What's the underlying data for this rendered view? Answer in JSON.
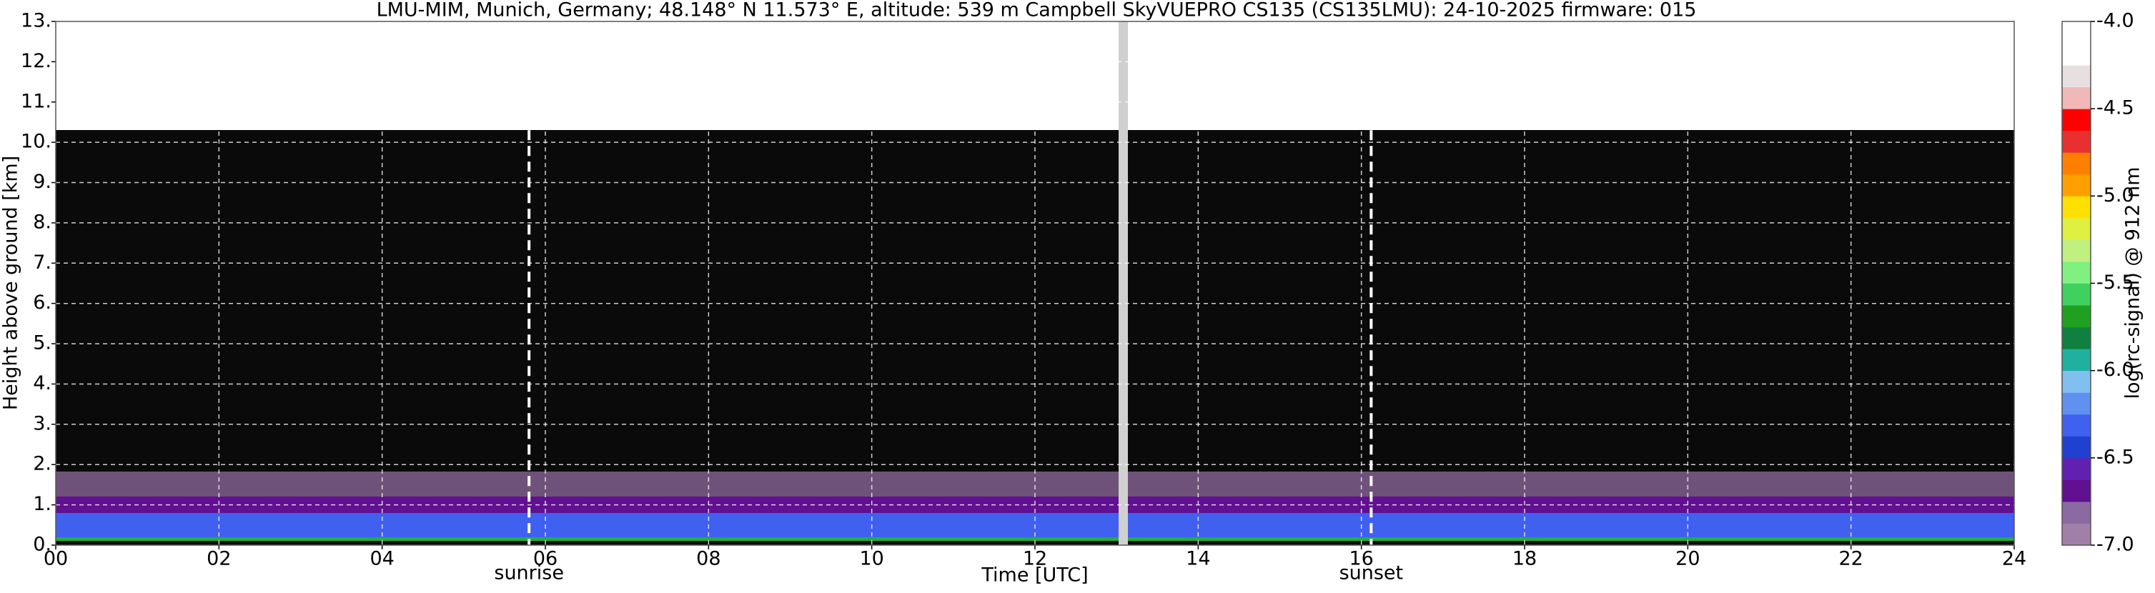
{
  "chart_data": {
    "type": "heatmap",
    "title": "LMU-MIM, Munich, Germany; 48.148° N 11.573° E, altitude: 539 m    Campbell SkyVUEPRO CS135 (CS135LMU): 24-10-2025    firmware: 015",
    "x_label": "Time [UTC]",
    "y_label": "Height above ground [km]",
    "xlim": [
      0,
      24
    ],
    "xticks": [
      {
        "value": 0,
        "label": "00"
      },
      {
        "value": 2,
        "label": "02"
      },
      {
        "value": 4,
        "label": "04"
      },
      {
        "value": 6,
        "label": "06"
      },
      {
        "value": 8,
        "label": "08"
      },
      {
        "value": 10,
        "label": "10"
      },
      {
        "value": 12,
        "label": "12"
      },
      {
        "value": 14,
        "label": "14"
      },
      {
        "value": 16,
        "label": "16"
      },
      {
        "value": 18,
        "label": "18"
      },
      {
        "value": 20,
        "label": "20"
      },
      {
        "value": 22,
        "label": "22"
      },
      {
        "value": 24,
        "label": "24"
      }
    ],
    "ylim": [
      0,
      13
    ],
    "yticks": [
      {
        "value": 0,
        "label": "0."
      },
      {
        "value": 1,
        "label": "1."
      },
      {
        "value": 2,
        "label": "2."
      },
      {
        "value": 3,
        "label": "3."
      },
      {
        "value": 4,
        "label": "4."
      },
      {
        "value": 5,
        "label": "5."
      },
      {
        "value": 6,
        "label": "6."
      },
      {
        "value": 7,
        "label": "7."
      },
      {
        "value": 8,
        "label": "8."
      },
      {
        "value": 9,
        "label": "9."
      },
      {
        "value": 10,
        "label": "10."
      },
      {
        "value": 11,
        "label": "11."
      },
      {
        "value": 12,
        "label": "12."
      },
      {
        "value": 13,
        "label": "13."
      }
    ],
    "grid": true,
    "annotations": [
      {
        "text": "sunrise",
        "x": 5.8
      },
      {
        "text": "sunset",
        "x": 16.12
      }
    ],
    "colorbar": {
      "label": "log(rc-signal) @ 912 nm",
      "lim": [
        -7,
        -4
      ],
      "ticks": [
        {
          "value": -4,
          "label": "-4.0"
        },
        {
          "value": -4.5,
          "label": "-4.5"
        },
        {
          "value": -5,
          "label": "-5.0"
        },
        {
          "value": -5.5,
          "label": "-5.5"
        },
        {
          "value": -6,
          "label": "-6.0"
        },
        {
          "value": -6.5,
          "label": "-6.5"
        },
        {
          "value": -7,
          "label": "-7.0"
        }
      ],
      "colors": [
        "#a080a8",
        "#8a6aa0",
        "#601090",
        "#6020b0",
        "#2040d0",
        "#4060f0",
        "#6090f0",
        "#80c0f0",
        "#20b0a0",
        "#108040",
        "#20a020",
        "#40d060",
        "#80f080",
        "#c0f080",
        "#e0f040",
        "#ffe000",
        "#ffa000",
        "#ff8000",
        "#e83030",
        "#ff0000",
        "#f0b8b8",
        "#e8e0e0",
        "#ffffff",
        "#ffffff"
      ]
    }
  }
}
